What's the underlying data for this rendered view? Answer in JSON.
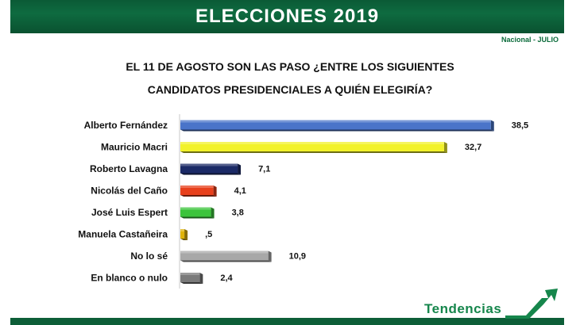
{
  "header": {
    "title": "ELECCIONES 2019",
    "subtitle": "Nacional -  JULIO"
  },
  "question": {
    "line1": "EL 11 DE AGOSTO SON LAS PASO ¿ENTRE LOS SIGUIENTES",
    "line2": "CANDIDATOS PRESIDENCIALES A QUIÉN ELEGIRÍA?"
  },
  "chart_data": {
    "type": "bar",
    "orientation": "horizontal",
    "grid": false,
    "categories": [
      "Alberto Fernández",
      "Mauricio Macri",
      "Roberto Lavagna",
      "Nicolás del Caño",
      "José Luis Espert",
      "Manuela Castañeira",
      "No lo sé",
      "En blanco o nulo"
    ],
    "values": [
      38.5,
      32.7,
      7.1,
      4.1,
      3.8,
      0.5,
      10.9,
      2.4
    ],
    "value_labels": [
      "38,5",
      "32,7",
      "7,1",
      "4,1",
      "3,8",
      ",5",
      "10,9",
      "2,4"
    ],
    "colors": [
      "#4a74c9",
      "#f2f22a",
      "#1b2a66",
      "#e8401c",
      "#3cc43c",
      "#e0b40a",
      "#a8a8a8",
      "#7a7a7a"
    ],
    "xlim": [
      0,
      40
    ]
  },
  "footer": {
    "brand": "Tendencias",
    "accent_color": "#16864c"
  }
}
